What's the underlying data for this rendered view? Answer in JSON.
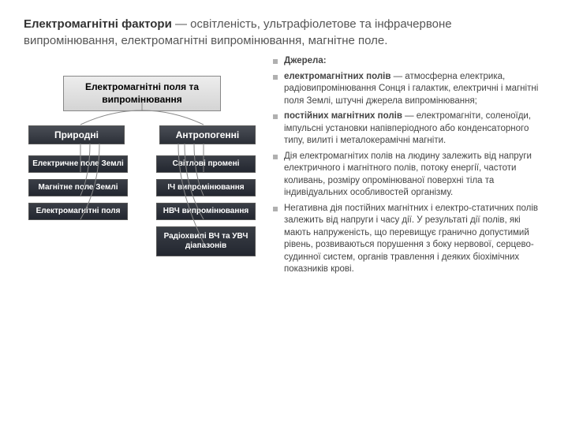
{
  "title_prefix": "Електромагнітні фактори",
  "title_rest": " — освітленість, ультрафіолетове та інфрачервоне випромінювання, електромагнітні випромінювання, магнітне поле.",
  "diagram": {
    "root": "Електромагнітні поля та випромінювання",
    "mid_left": "Природні",
    "mid_right": "Антропогенні",
    "left_leaves": [
      "Електричне поле Землі",
      "Магнітне поле Землі",
      "Електромагнітні поля"
    ],
    "right_leaves": [
      "Світлові промені",
      "ІЧ випромінювання",
      "НВЧ випромінювання",
      "Радіохвилі ВЧ та УВЧ діапазонів"
    ]
  },
  "bullets": [
    {
      "bold": "Джерела:",
      "rest": ""
    },
    {
      "bold": "електромагнітних полів",
      "rest": " — атмосферна електрика, радіовипромінювання Сонця і галактик, електричні і магнітні поля Землі, штучні джерела випромінювання;"
    },
    {
      "bold": "постійних магнітних полів",
      "rest": " — електромагніти, соленоїди, імпульсні установки напівперіодного або конденсаторного типу, вилиті і металокерамічні магніти."
    },
    {
      "bold": "",
      "rest": "Дія електромагнітих полів на людину залежить від напруги електричного і магнітного полів, потоку енергії, частоти коливань, розміру опромінюваної поверхні тіла та індивідуальних особливостей організму."
    },
    {
      "bold": "",
      "rest": "Негативна дія постійних магнітних і електро-статичних полів залежить від напруги і часу дії. У результаті дії полів, які мають напруженість, що перевищує гранично допустимий рівень, розвиваються порушення з боку нервової, серцево-судинної систем, органів травлення і деяких біохімічних показників крові."
    }
  ],
  "connectors": {
    "stroke": "#888888",
    "width": 1,
    "paths": [
      "M150 60 L150 70 M150 70 Q110 70 72 88",
      "M150 70 Q190 70 228 88",
      "M72 112 C72 130 72 140 72 148",
      "M84 112 C84 138 80 160 72 178",
      "M96 112 C96 150 88 180 72 208",
      "M228 112 C228 130 228 140 228 148",
      "M216 112 C216 138 220 160 228 178",
      "M204 112 C204 150 212 180 228 208",
      "M196 112 C196 160 210 200 228 238"
    ]
  }
}
